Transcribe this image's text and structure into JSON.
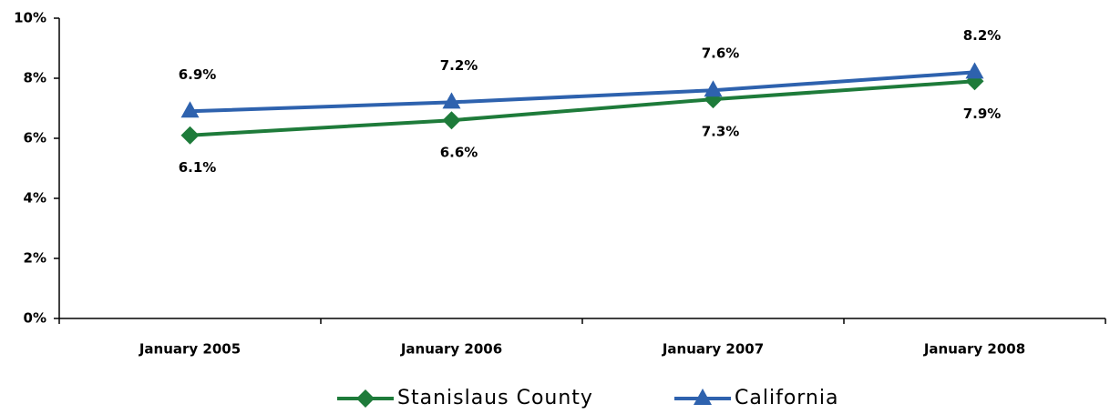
{
  "chart_data": {
    "type": "line",
    "categories": [
      "January 2005",
      "January 2006",
      "January 2007",
      "January 2008"
    ],
    "series": [
      {
        "name": "Stanislaus County",
        "color": "#1e7b3a",
        "marker": "diamond",
        "values": [
          6.1,
          6.6,
          7.3,
          7.9
        ],
        "value_labels": [
          "6.1%",
          "6.6%",
          "7.3%",
          "7.9%"
        ]
      },
      {
        "name": "California",
        "color": "#2e62ae",
        "marker": "triangle",
        "values": [
          6.9,
          7.2,
          7.6,
          8.2
        ],
        "value_labels": [
          "6.9%",
          "7.2%",
          "7.6%",
          "8.2%"
        ]
      }
    ],
    "ylim": [
      0,
      10
    ],
    "yticks": [
      {
        "value": 0,
        "label": "0%"
      },
      {
        "value": 2,
        "label": "2%"
      },
      {
        "value": 4,
        "label": "4%"
      },
      {
        "value": 6,
        "label": "6%"
      },
      {
        "value": 8,
        "label": "8%"
      },
      {
        "value": 10,
        "label": "10%"
      }
    ],
    "grid": false,
    "legend": "bottom"
  }
}
